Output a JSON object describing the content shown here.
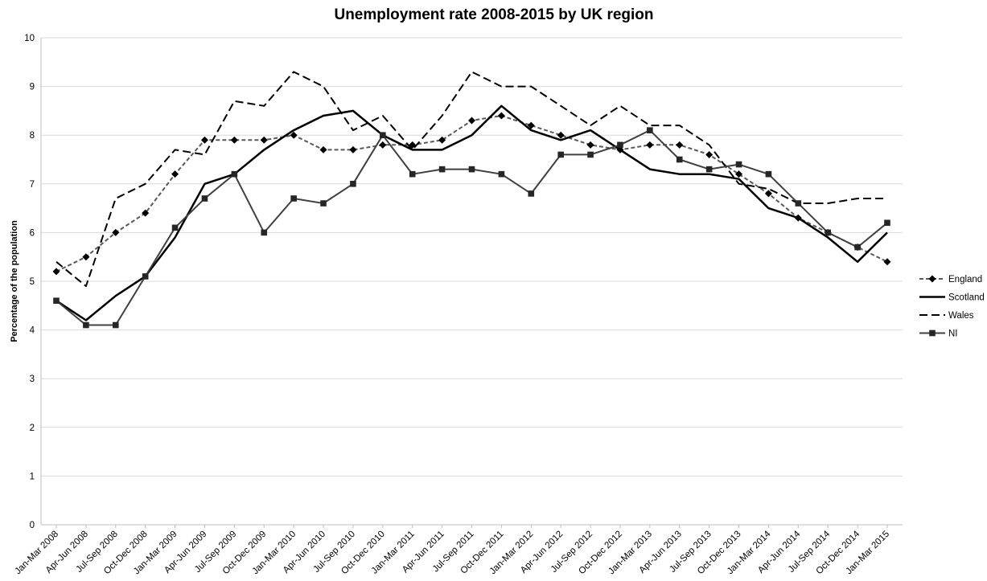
{
  "chart_data": {
    "type": "line",
    "title": "Unemployment rate 2008-2015 by UK region",
    "xlabel": "",
    "ylabel": "Percentage of the population",
    "ylim": [
      0,
      10
    ],
    "yticks": [
      "0",
      "1",
      "2",
      "3",
      "4",
      "5",
      "6",
      "7",
      "8",
      "9",
      "10"
    ],
    "grid": true,
    "legend_position": "right",
    "categories": [
      "Jan-Mar 2008",
      "Apr-Jun 2008",
      "Jul-Sep 2008",
      "Oct-Dec 2008",
      "Jan-Mar 2009",
      "Apr-Jun 2009",
      "Jul-Sep 2009",
      "Oct-Dec 2009",
      "Jan-Mar 2010",
      "Apr-Jun 2010",
      "Jul-Sep 2010",
      "Oct-Dec 2010",
      "Jan-Mar 2011",
      "Apr-Jun 2011",
      "Jul-Sep 2011",
      "Oct-Dec 2011",
      "Jan-Mar 2012",
      "Apr-Jun 2012",
      "Jul-Sep 2012",
      "Oct-Dec 2012",
      "Jan-Mar 2013",
      "Apr-Jun 2013",
      "Jul-Sep 2013",
      "Oct-Dec 2013",
      "Jan-Mar 2014",
      "Apr-Jun 2014",
      "Jul-Sep 2014",
      "Oct-Dec 2014",
      "Jan-Mar 2015"
    ],
    "series": [
      {
        "name": "England",
        "color": "#595959",
        "dash": "dash",
        "marker": "diamond",
        "values": [
          5.2,
          5.5,
          6.0,
          6.4,
          7.2,
          7.9,
          7.9,
          7.9,
          8.0,
          7.7,
          7.7,
          7.8,
          7.8,
          7.9,
          8.3,
          8.4,
          8.2,
          8.0,
          7.8,
          7.7,
          7.8,
          7.8,
          7.6,
          7.2,
          6.8,
          6.3,
          6.0,
          5.7,
          5.4
        ]
      },
      {
        "name": "Scotland",
        "color": "#000000",
        "dash": "solid",
        "marker": "none",
        "values": [
          4.6,
          4.2,
          4.7,
          5.1,
          5.9,
          7.0,
          7.2,
          7.7,
          8.1,
          8.4,
          8.5,
          8.0,
          7.7,
          7.7,
          8.0,
          8.6,
          8.1,
          7.9,
          8.1,
          7.7,
          7.3,
          7.2,
          7.2,
          7.1,
          6.5,
          6.3,
          5.9,
          5.4,
          6.0
        ]
      },
      {
        "name": "Wales",
        "color": "#000000",
        "dash": "longdash",
        "marker": "none",
        "values": [
          5.4,
          4.9,
          6.7,
          7.0,
          7.7,
          7.6,
          8.7,
          8.6,
          9.3,
          9.0,
          8.1,
          8.4,
          7.7,
          8.4,
          9.3,
          9.0,
          9.0,
          8.6,
          8.2,
          8.6,
          8.2,
          8.2,
          7.8,
          7.0,
          6.9,
          6.6,
          6.6,
          6.7,
          6.7
        ]
      },
      {
        "name": "NI",
        "color": "#404040",
        "dash": "solid",
        "marker": "square",
        "values": [
          4.6,
          4.1,
          4.1,
          5.1,
          6.1,
          6.7,
          7.2,
          6.0,
          6.7,
          6.6,
          7.0,
          8.0,
          7.2,
          7.3,
          7.3,
          7.2,
          6.8,
          7.6,
          7.6,
          7.8,
          8.1,
          7.5,
          7.3,
          7.4,
          7.2,
          6.6,
          6.0,
          5.7,
          6.2
        ]
      }
    ]
  }
}
